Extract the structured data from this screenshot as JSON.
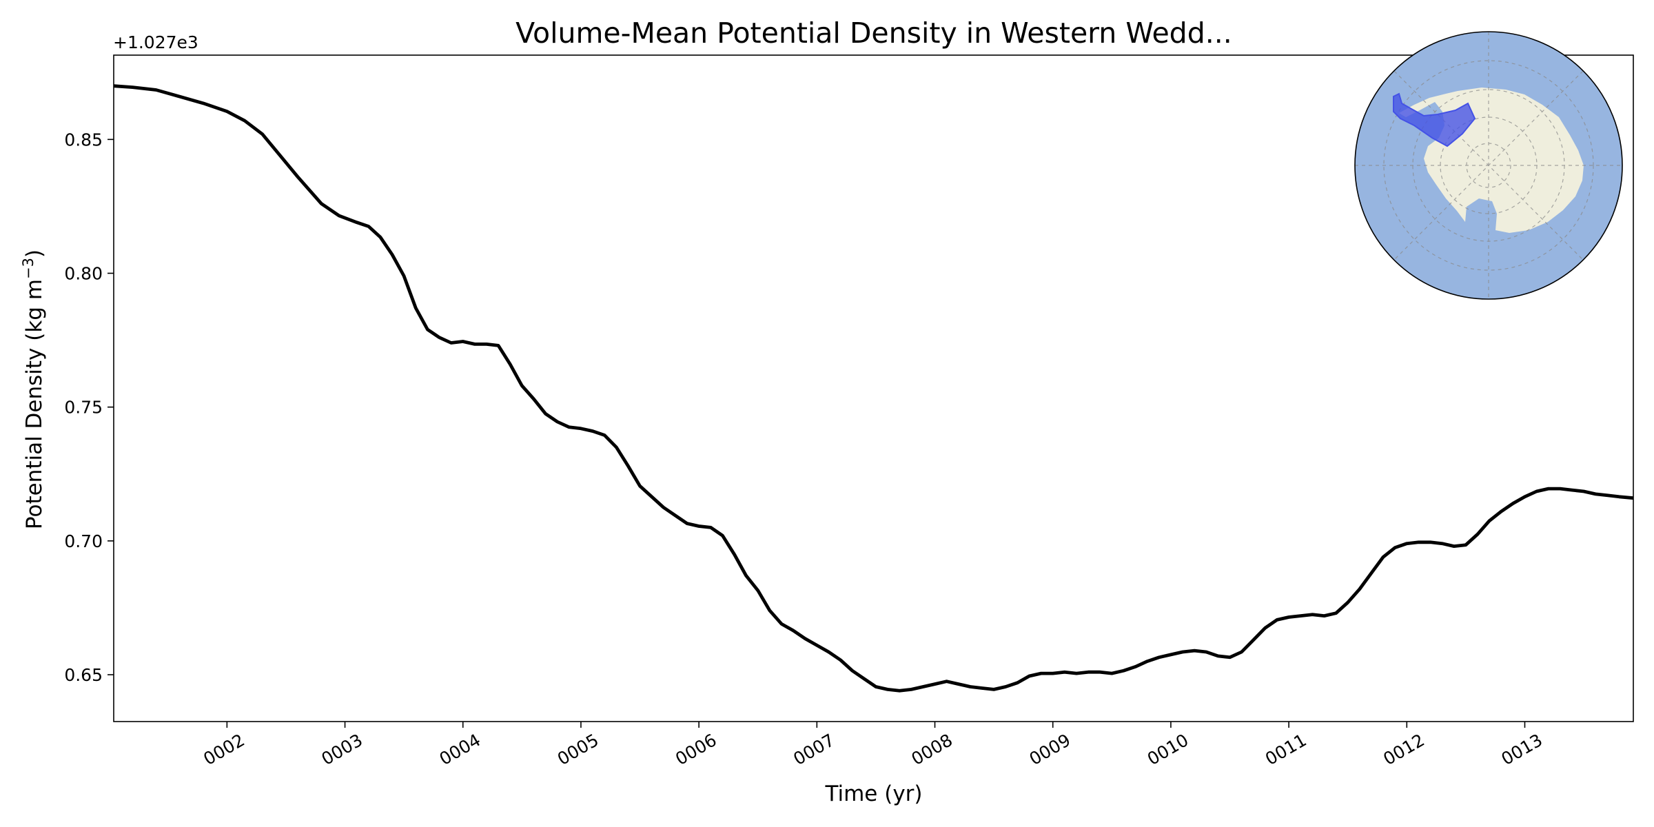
{
  "chart_data": {
    "type": "line",
    "title": "Volume-Mean Potential Density in Western Wedd...",
    "xlabel": "Time (yr)",
    "ylabel_main": "Potential Density (kg m",
    "ylabel_sup": "−3",
    "ylabel_close": ")",
    "offset_text": "+1.027e3",
    "xlim": [
      1.04,
      13.92
    ],
    "ylim": [
      0.6325,
      0.8815
    ],
    "x_ticks": [
      2,
      3,
      4,
      5,
      6,
      7,
      8,
      9,
      10,
      11,
      12,
      13
    ],
    "x_tick_labels": [
      "0002",
      "0003",
      "0004",
      "0005",
      "0006",
      "0007",
      "0008",
      "0009",
      "0010",
      "0011",
      "0012",
      "0013"
    ],
    "y_ticks": [
      0.65,
      0.7,
      0.75,
      0.8,
      0.85
    ],
    "y_tick_labels": [
      "0.65",
      "0.70",
      "0.75",
      "0.80",
      "0.85"
    ],
    "grid": false,
    "line_color": "#000000",
    "series": [
      {
        "x": [
          1.04,
          1.2,
          1.4,
          1.6,
          1.8,
          2.0,
          2.15,
          2.3,
          2.45,
          2.6,
          2.8,
          2.95,
          3.1,
          3.2,
          3.3,
          3.4,
          3.5,
          3.6,
          3.7,
          3.8,
          3.9,
          4.0,
          4.1,
          4.2,
          4.3,
          4.4,
          4.5,
          4.6,
          4.7,
          4.8,
          4.9,
          5.0,
          5.1,
          5.2,
          5.3,
          5.4,
          5.5,
          5.6,
          5.7,
          5.8,
          5.9,
          6.0,
          6.1,
          6.2,
          6.3,
          6.4,
          6.5,
          6.6,
          6.7,
          6.8,
          6.9,
          7.0,
          7.1,
          7.2,
          7.3,
          7.4,
          7.5,
          7.6,
          7.7,
          7.8,
          7.9,
          8.0,
          8.1,
          8.2,
          8.3,
          8.4,
          8.5,
          8.6,
          8.7,
          8.8,
          8.9,
          9.0,
          9.1,
          9.2,
          9.3,
          9.4,
          9.5,
          9.6,
          9.7,
          9.8,
          9.9,
          10.0,
          10.1,
          10.2,
          10.3,
          10.4,
          10.5,
          10.6,
          10.7,
          10.8,
          10.9,
          11.0,
          11.1,
          11.2,
          11.3,
          11.4,
          11.5,
          11.6,
          11.7,
          11.8,
          11.9,
          12.0,
          12.1,
          12.2,
          12.3,
          12.4,
          12.5,
          12.6,
          12.7,
          12.8,
          12.9,
          13.0,
          13.1,
          13.2,
          13.3,
          13.4,
          13.5,
          13.6,
          13.7,
          13.8,
          13.92
        ],
        "y": [
          0.87,
          0.8695,
          0.8685,
          0.866,
          0.8635,
          0.8605,
          0.857,
          0.852,
          0.844,
          0.836,
          0.826,
          0.8215,
          0.819,
          0.8175,
          0.8135,
          0.807,
          0.799,
          0.787,
          0.779,
          0.776,
          0.774,
          0.7745,
          0.7735,
          0.7735,
          0.773,
          0.766,
          0.758,
          0.753,
          0.7475,
          0.7445,
          0.7425,
          0.742,
          0.741,
          0.7395,
          0.735,
          0.728,
          0.7205,
          0.7165,
          0.7125,
          0.7095,
          0.7065,
          0.7055,
          0.705,
          0.702,
          0.695,
          0.687,
          0.6815,
          0.674,
          0.669,
          0.6665,
          0.6635,
          0.661,
          0.6585,
          0.6555,
          0.6515,
          0.6485,
          0.6455,
          0.6445,
          0.644,
          0.6445,
          0.6455,
          0.6465,
          0.6475,
          0.6465,
          0.6455,
          0.645,
          0.6445,
          0.6455,
          0.647,
          0.6495,
          0.6505,
          0.6505,
          0.651,
          0.6505,
          0.651,
          0.651,
          0.6505,
          0.6515,
          0.653,
          0.655,
          0.6565,
          0.6575,
          0.6585,
          0.659,
          0.6585,
          0.657,
          0.6565,
          0.6585,
          0.663,
          0.6675,
          0.6705,
          0.6715,
          0.672,
          0.6725,
          0.672,
          0.673,
          0.677,
          0.682,
          0.688,
          0.694,
          0.6975,
          0.699,
          0.6995,
          0.6995,
          0.699,
          0.698,
          0.6985,
          0.7025,
          0.7075,
          0.711,
          0.714,
          0.7165,
          0.7185,
          0.7195,
          0.7195,
          0.719,
          0.7185,
          0.7175,
          0.717,
          0.7165,
          0.716
        ]
      }
    ]
  },
  "inset_map": {
    "ocean_color": "#97b5e0",
    "land_color": "#efeedd",
    "region_color": "#4452e6"
  }
}
